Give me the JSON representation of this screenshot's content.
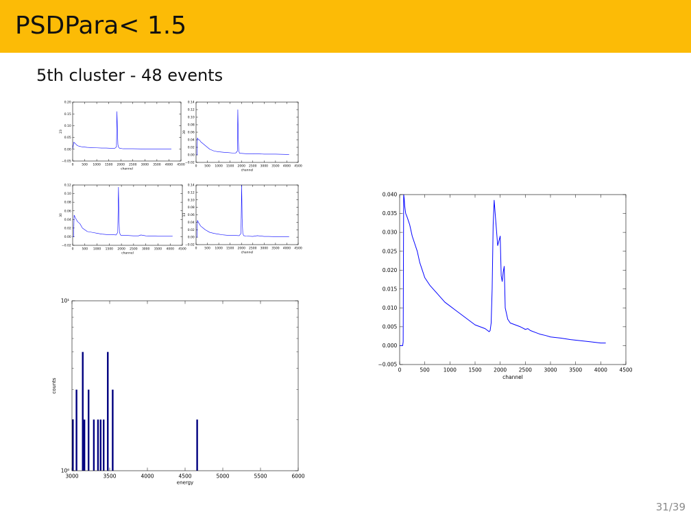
{
  "slide": {
    "title": "PSDPara< 1.5",
    "subtitle": "5th cluster - 48 events",
    "page": "31/39"
  },
  "colors": {
    "header": "#fcbb06",
    "line": "#0000ff",
    "bar": "#00007f"
  },
  "chart_data": [
    {
      "type": "line",
      "panel": "small-top-left",
      "xlabel": "channel",
      "ylabel": "23",
      "xlim": [
        0,
        4500
      ],
      "ylim": [
        -0.05,
        0.2
      ],
      "xticks": [
        0,
        500,
        1000,
        1500,
        2000,
        2500,
        3000,
        3500,
        4000,
        4500
      ],
      "xtick_labels": [
        "0",
        "500",
        "1000",
        "1500",
        "2000",
        "2500",
        "3000",
        "3500",
        "4000",
        "4500"
      ],
      "yticks": [
        -0.05,
        0.0,
        0.05,
        0.1,
        0.15,
        0.2
      ],
      "ytick_labels": [
        "−0.05",
        "0.00",
        "0.05",
        "0.10",
        "0.15",
        "0.20"
      ],
      "series": [
        {
          "x": [
            0,
            50,
            100,
            150,
            200,
            300,
            400,
            600,
            800,
            1000,
            1200,
            1400,
            1600,
            1750,
            1820,
            1840,
            1860,
            1880,
            1900,
            1950,
            2100,
            2500,
            3000,
            3500,
            4100
          ],
          "y": [
            0.0,
            0.03,
            0.025,
            0.02,
            0.015,
            0.012,
            0.01,
            0.008,
            0.007,
            0.006,
            0.005,
            0.005,
            0.004,
            0.004,
            0.01,
            0.16,
            0.08,
            0.02,
            0.01,
            0.004,
            0.002,
            0.002,
            0.001,
            0.001,
            0.001
          ]
        }
      ]
    },
    {
      "type": "line",
      "panel": "small-top-right",
      "xlabel": "channel",
      "ylabel": "39",
      "xlim": [
        0,
        4500
      ],
      "ylim": [
        -0.02,
        0.14
      ],
      "xticks": [
        0,
        500,
        1000,
        1500,
        2000,
        2500,
        3000,
        3500,
        4000,
        4500
      ],
      "xtick_labels": [
        "0",
        "500",
        "1000",
        "1500",
        "2000",
        "2500",
        "3000",
        "3500",
        "4000",
        "4500"
      ],
      "yticks": [
        -0.02,
        0.0,
        0.02,
        0.04,
        0.06,
        0.08,
        0.1,
        0.12,
        0.14
      ],
      "ytick_labels": [
        "−0.02",
        "0.00",
        "0.02",
        "0.04",
        "0.06",
        "0.08",
        "0.10",
        "0.12",
        "0.14"
      ],
      "series": [
        {
          "x": [
            0,
            40,
            60,
            100,
            150,
            200,
            300,
            400,
            600,
            800,
            1000,
            1200,
            1400,
            1600,
            1750,
            1820,
            1840,
            1860,
            1880,
            1920,
            2000,
            2200,
            2500,
            3000,
            3500,
            4100
          ],
          "y": [
            0.0,
            0.0,
            0.045,
            0.04,
            0.04,
            0.035,
            0.03,
            0.025,
            0.015,
            0.01,
            0.008,
            0.007,
            0.006,
            0.005,
            0.005,
            0.01,
            0.12,
            0.05,
            0.01,
            0.004,
            0.004,
            0.003,
            0.003,
            0.002,
            0.002,
            0.001
          ]
        }
      ]
    },
    {
      "type": "line",
      "panel": "small-bottom-left",
      "xlabel": "channel",
      "ylabel": "30",
      "xlim": [
        0,
        4500
      ],
      "ylim": [
        -0.02,
        0.12
      ],
      "xticks": [
        0,
        500,
        1000,
        1500,
        2000,
        2500,
        3000,
        3500,
        4000,
        4500
      ],
      "xtick_labels": [
        "0",
        "500",
        "1000",
        "1500",
        "2000",
        "2500",
        "3000",
        "3500",
        "4000",
        "4500"
      ],
      "yticks": [
        -0.02,
        0.0,
        0.02,
        0.04,
        0.06,
        0.08,
        0.1,
        0.12
      ],
      "ytick_labels": [
        "−0.02",
        "0.00",
        "0.02",
        "0.04",
        "0.06",
        "0.08",
        "0.10",
        "0.12"
      ],
      "series": [
        {
          "x": [
            0,
            40,
            60,
            100,
            150,
            200,
            300,
            400,
            600,
            800,
            1000,
            1200,
            1400,
            1600,
            1780,
            1850,
            1880,
            1900,
            1920,
            1960,
            2000,
            2200,
            2500,
            2700,
            2800,
            3000,
            3500,
            4100
          ],
          "y": [
            0.0,
            0.0,
            0.05,
            0.045,
            0.04,
            0.035,
            0.03,
            0.02,
            0.012,
            0.01,
            0.008,
            0.006,
            0.005,
            0.005,
            0.004,
            0.01,
            0.115,
            0.04,
            0.01,
            0.004,
            0.003,
            0.003,
            0.002,
            0.002,
            0.004,
            0.002,
            0.001,
            0.001
          ]
        }
      ]
    },
    {
      "type": "line",
      "panel": "small-bottom-right",
      "xlabel": "channel",
      "ylabel": "13",
      "xlim": [
        0,
        4500
      ],
      "ylim": [
        -0.02,
        0.14
      ],
      "xticks": [
        0,
        500,
        1000,
        1500,
        2000,
        2500,
        3000,
        3500,
        4000,
        4500
      ],
      "xtick_labels": [
        "0",
        "500",
        "1000",
        "1500",
        "2000",
        "2500",
        "3000",
        "3500",
        "4000",
        "4500"
      ],
      "yticks": [
        -0.02,
        0.0,
        0.02,
        0.04,
        0.06,
        0.08,
        0.1,
        0.12,
        0.14
      ],
      "ytick_labels": [
        "−0.02",
        "0.00",
        "0.02",
        "0.04",
        "0.06",
        "0.08",
        "0.10",
        "0.12",
        "0.14"
      ],
      "series": [
        {
          "x": [
            0,
            40,
            60,
            100,
            150,
            200,
            300,
            400,
            600,
            800,
            1000,
            1200,
            1400,
            1600,
            1900,
            1980,
            2010,
            2030,
            2060,
            2100,
            2200,
            2500,
            2700,
            3000,
            3200,
            3600,
            4100
          ],
          "y": [
            0.0,
            0.0,
            0.045,
            0.04,
            0.035,
            0.03,
            0.025,
            0.02,
            0.013,
            0.01,
            0.008,
            0.006,
            0.005,
            0.005,
            0.004,
            0.01,
            0.14,
            0.05,
            0.01,
            0.004,
            0.003,
            0.002,
            0.004,
            0.002,
            0.002,
            0.001,
            0.001
          ]
        }
      ]
    },
    {
      "type": "bar",
      "panel": "histogram",
      "xlabel": "energy",
      "ylabel": "counts",
      "xlim": [
        3000,
        6000
      ],
      "yscale": "log",
      "ylim": [
        1,
        10
      ],
      "xticks": [
        3000,
        3500,
        4000,
        4500,
        5000,
        5500,
        6000
      ],
      "xtick_labels": [
        "3000",
        "3500",
        "4000",
        "4500",
        "5000",
        "5500",
        "6000"
      ],
      "yticks": [
        1,
        10
      ],
      "ytick_labels": [
        "10⁰",
        "10¹"
      ],
      "bar_width": 22,
      "x": [
        3012,
        3060,
        3143,
        3165,
        3220,
        3290,
        3345,
        3380,
        3420,
        3475,
        3540,
        4660
      ],
      "values": [
        2,
        3,
        5,
        2,
        3,
        2,
        2,
        2,
        2,
        5,
        3,
        2
      ]
    },
    {
      "type": "line",
      "panel": "large",
      "xlabel": "channel",
      "ylabel": "",
      "xlim": [
        0,
        4500
      ],
      "ylim": [
        -0.005,
        0.04
      ],
      "xticks": [
        0,
        500,
        1000,
        1500,
        2000,
        2500,
        3000,
        3500,
        4000,
        4500
      ],
      "xtick_labels": [
        "0",
        "500",
        "1000",
        "1500",
        "2000",
        "2500",
        "3000",
        "3500",
        "4000",
        "4500"
      ],
      "yticks": [
        -0.005,
        0.0,
        0.005,
        0.01,
        0.015,
        0.02,
        0.025,
        0.03,
        0.035,
        0.04
      ],
      "ytick_labels": [
        "−0.005",
        "0.000",
        "0.005",
        "0.010",
        "0.015",
        "0.020",
        "0.025",
        "0.030",
        "0.035",
        "0.040"
      ],
      "series": [
        {
          "x": [
            0,
            30,
            60,
            70,
            80,
            90,
            100,
            120,
            150,
            200,
            250,
            300,
            350,
            400,
            450,
            500,
            600,
            700,
            800,
            900,
            1000,
            1100,
            1200,
            1300,
            1400,
            1500,
            1600,
            1700,
            1750,
            1780,
            1800,
            1820,
            1840,
            1860,
            1880,
            1900,
            1950,
            2000,
            2020,
            2040,
            2060,
            2080,
            2100,
            2150,
            2200,
            2300,
            2400,
            2500,
            2550,
            2600,
            2700,
            2800,
            2900,
            3000,
            3200,
            3400,
            3600,
            3800,
            4000,
            4100
          ],
          "y": [
            0.0,
            0.0,
            0.0,
            0.001,
            0.04,
            0.039,
            0.037,
            0.035,
            0.034,
            0.032,
            0.029,
            0.027,
            0.025,
            0.022,
            0.02,
            0.018,
            0.016,
            0.0145,
            0.013,
            0.0115,
            0.0105,
            0.0095,
            0.0085,
            0.0075,
            0.0065,
            0.0055,
            0.005,
            0.0045,
            0.004,
            0.0037,
            0.004,
            0.006,
            0.015,
            0.032,
            0.0385,
            0.035,
            0.0265,
            0.029,
            0.0185,
            0.017,
            0.0195,
            0.021,
            0.01,
            0.007,
            0.006,
            0.0055,
            0.005,
            0.0043,
            0.0045,
            0.004,
            0.0035,
            0.003,
            0.0027,
            0.0023,
            0.002,
            0.0016,
            0.0013,
            0.001,
            0.0007,
            0.0007
          ]
        }
      ]
    }
  ]
}
